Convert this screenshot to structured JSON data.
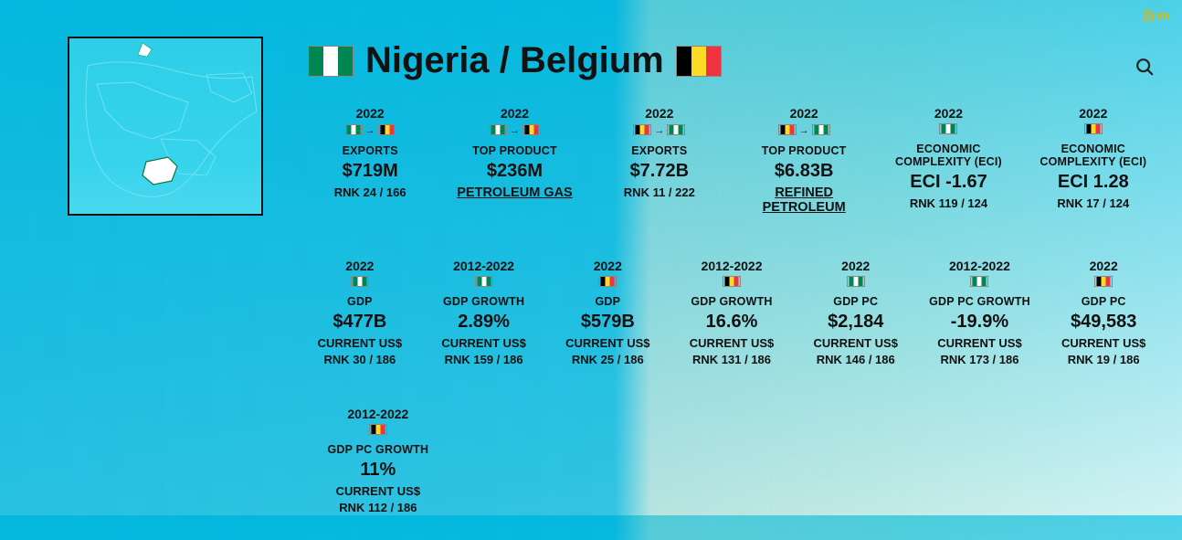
{
  "title": {
    "country1": "Nigeria",
    "sep": " / ",
    "country2": "Belgium"
  },
  "toolbar": {
    "save_label": "Im"
  },
  "colors": {
    "bg_top": "#15c4e6",
    "nigeria_green": "#008751",
    "nigeria_white": "#ffffff",
    "belgium_black": "#000000",
    "belgium_yellow": "#fdda24",
    "belgium_red": "#ef3340"
  },
  "cards_row1": [
    {
      "year": "2022",
      "flag_mode": "ng-to-be",
      "label": "EXPORTS",
      "value": "$719M",
      "sub2": "RNK 24 / 166"
    },
    {
      "year": "2022",
      "flag_mode": "ng-to-be",
      "label": "TOP PRODUCT",
      "value": "$236M",
      "link": "PETROLEUM GAS"
    },
    {
      "year": "2022",
      "flag_mode": "be-to-ng",
      "label": "EXPORTS",
      "value": "$7.72B",
      "sub2": "RNK 11 / 222"
    },
    {
      "year": "2022",
      "flag_mode": "be-to-ng",
      "label": "TOP PRODUCT",
      "value": "$6.83B",
      "link": "REFINED PETROLEUM"
    },
    {
      "year": "2022",
      "flag_mode": "ng",
      "label": "ECONOMIC COMPLEXITY (ECI)",
      "value": "ECI -1.67",
      "sub2": "RNK 119 / 124"
    },
    {
      "year": "2022",
      "flag_mode": "be",
      "label": "ECONOMIC COMPLEXITY (ECI)",
      "value": "ECI 1.28",
      "sub2": "RNK 17 / 124"
    }
  ],
  "cards_row2": [
    {
      "year": "2022",
      "flag_mode": "ng",
      "label": "GDP",
      "value": "$477B",
      "sub1": "CURRENT US$",
      "sub2": "RNK 30 / 186"
    },
    {
      "year": "2012-2022",
      "flag_mode": "ng",
      "label": "GDP GROWTH",
      "value": "2.89%",
      "sub1": "CURRENT US$",
      "sub2": "RNK 159 / 186"
    },
    {
      "year": "2022",
      "flag_mode": "be",
      "label": "GDP",
      "value": "$579B",
      "sub1": "CURRENT US$",
      "sub2": "RNK 25 / 186"
    },
    {
      "year": "2012-2022",
      "flag_mode": "be",
      "label": "GDP GROWTH",
      "value": "16.6%",
      "sub1": "CURRENT US$",
      "sub2": "RNK 131 / 186"
    },
    {
      "year": "2022",
      "flag_mode": "ng",
      "label": "GDP PC",
      "value": "$2,184",
      "sub1": "CURRENT US$",
      "sub2": "RNK 146 / 186"
    },
    {
      "year": "2012-2022",
      "flag_mode": "ng",
      "label": "GDP PC GROWTH",
      "value": "-19.9%",
      "sub1": "CURRENT US$",
      "sub2": "RNK 173 / 186"
    },
    {
      "year": "2022",
      "flag_mode": "be",
      "label": "GDP PC",
      "value": "$49,583",
      "sub1": "CURRENT US$",
      "sub2": "RNK 19 / 186"
    }
  ],
  "cards_row3": [
    {
      "year": "2012-2022",
      "flag_mode": "be",
      "label": "GDP PC GROWTH",
      "value": "11%",
      "sub1": "CURRENT US$",
      "sub2": "RNK 112 / 186"
    }
  ]
}
